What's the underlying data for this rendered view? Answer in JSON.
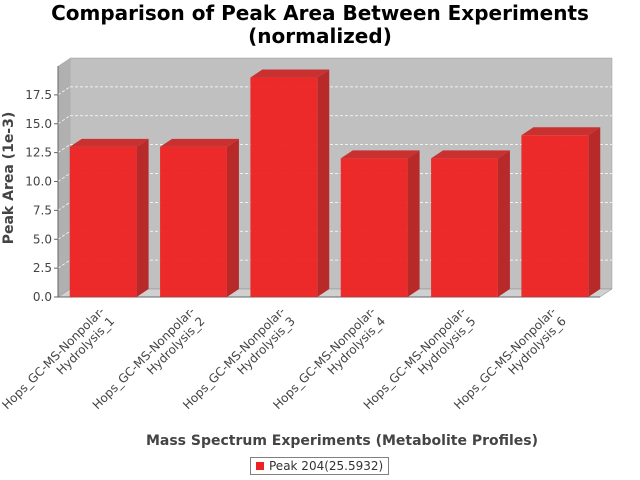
{
  "chart_data": {
    "type": "bar",
    "title": [
      "Comparison of Peak Area Between Experiments",
      "(normalized)"
    ],
    "xlabel": "Mass Spectrum Experiments (Metabolite Profiles)",
    "ylabel": "Peak Area (1e-3)",
    "ylim": [
      0,
      20
    ],
    "yticks": [
      "0.0",
      "2.5",
      "5.0",
      "7.5",
      "10.0",
      "12.5",
      "15.0",
      "17.5"
    ],
    "categories": [
      [
        "Hops_GC-MS-Nonpolar-",
        "Hydrolysis_1"
      ],
      [
        "Hops_GC-MS-Nonpolar-",
        "Hydrolysis_2"
      ],
      [
        "Hops_GC-MS-Nonpolar-",
        "Hydrolysis_3"
      ],
      [
        "Hops_GC-MS-Nonpolar-",
        "Hydrolysis_4"
      ],
      [
        "Hops_GC-MS-Nonpolar-",
        "Hydrolysis_5"
      ],
      [
        "Hops_GC-MS-Nonpolar-",
        "Hydrolysis_6"
      ]
    ],
    "series": [
      {
        "name": "Peak 204(25.5932)",
        "values": [
          13.0,
          13.0,
          19.0,
          12.0,
          12.0,
          14.0
        ],
        "color": "#ee2222"
      }
    ],
    "grid": true,
    "legend": "bottom-center",
    "colors": {
      "plot_background": "#c0c0c0",
      "grid": "#ffffff",
      "bar": "#ee2222"
    }
  }
}
